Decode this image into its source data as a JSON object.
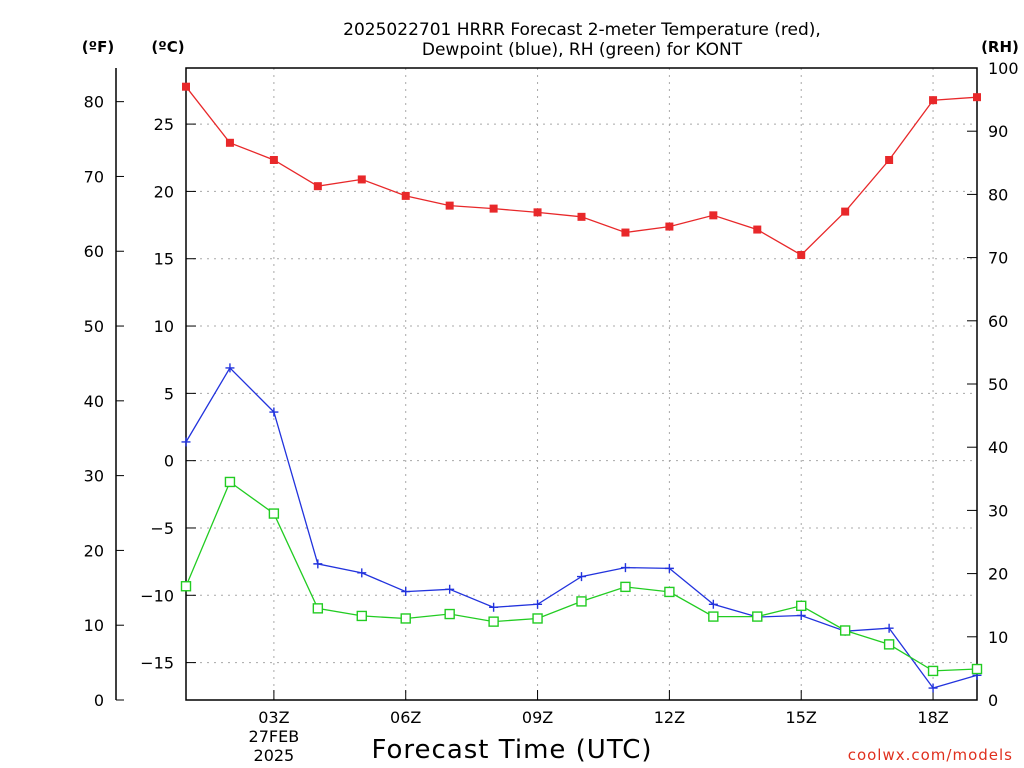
{
  "chart_data": {
    "type": "line",
    "title_lines": [
      "2025022701 HRRR Forecast 2-meter Temperature (red),",
      "Dewpoint (blue), RH (green) for KONT"
    ],
    "unit_labels": {
      "f": "(ºF)",
      "c": "(ºC)",
      "rh": "(RH)"
    },
    "xlabel": "Forecast Time (UTC)",
    "credit": "coolwx.com/models",
    "x_range": [
      1,
      19
    ],
    "x_ticks": [
      {
        "x": 3,
        "label": "03Z",
        "sub": [
          "27FEB",
          "2025"
        ]
      },
      {
        "x": 6,
        "label": "06Z"
      },
      {
        "x": 9,
        "label": "09Z"
      },
      {
        "x": 12,
        "label": "12Z"
      },
      {
        "x": 15,
        "label": "15Z"
      },
      {
        "x": 18,
        "label": "18Z"
      }
    ],
    "y_left_f": {
      "range": [
        0,
        84.5
      ],
      "ticks": [
        "0",
        "10",
        "20",
        "30",
        "40",
        "50",
        "60",
        "70",
        "80"
      ]
    },
    "y_left_c": {
      "ticks": [
        "−15",
        "−10",
        "−5",
        "0",
        "5",
        "10",
        "15",
        "20",
        "25"
      ],
      "values": [
        -15,
        -10,
        -5,
        0,
        5,
        10,
        15,
        20,
        25
      ]
    },
    "y_right_rh": {
      "range": [
        0,
        100
      ],
      "ticks": [
        "0",
        "10",
        "20",
        "30",
        "40",
        "50",
        "60",
        "70",
        "80",
        "90",
        "100"
      ]
    },
    "grid": true,
    "hours": [
      1,
      2,
      3,
      4,
      5,
      6,
      7,
      8,
      9,
      10,
      11,
      12,
      13,
      14,
      15,
      16,
      17,
      18,
      19
    ],
    "series": [
      {
        "axis": "f",
        "color": "#e8282a",
        "marker": "filled-square",
        "values": [
          82.0,
          74.5,
          72.2,
          68.7,
          69.6,
          67.4,
          66.1,
          65.7,
          65.2,
          64.6,
          62.5,
          63.3,
          64.8,
          62.9,
          59.5,
          65.3,
          72.2,
          80.2,
          80.6
        ]
      },
      {
        "axis": "f",
        "color": "#2233dd",
        "marker": "plus",
        "values": [
          34.5,
          44.4,
          38.5,
          18.2,
          17.0,
          14.5,
          14.8,
          12.4,
          12.8,
          16.5,
          17.7,
          17.6,
          12.8,
          11.1,
          11.3,
          9.2,
          9.6,
          1.6,
          3.3
        ]
      },
      {
        "axis": "rh",
        "color": "#22cc22",
        "marker": "open-square",
        "values": [
          18.0,
          34.5,
          29.5,
          14.5,
          13.3,
          12.9,
          13.6,
          12.4,
          12.9,
          15.6,
          17.9,
          17.1,
          13.2,
          13.2,
          14.9,
          11.0,
          8.8,
          4.6,
          4.9
        ]
      }
    ]
  }
}
